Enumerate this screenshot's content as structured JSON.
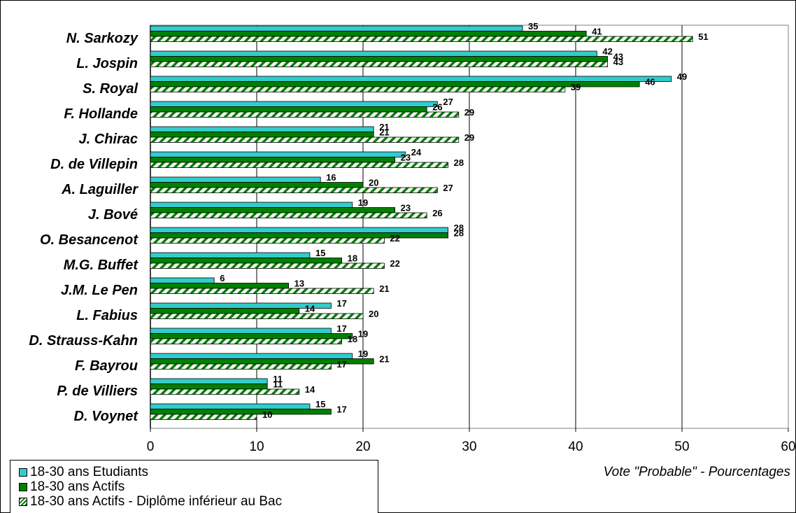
{
  "chart_data": {
    "type": "bar",
    "orientation": "horizontal",
    "categories": [
      "N. Sarkozy",
      "L. Jospin",
      "S. Royal",
      "F. Hollande",
      "J. Chirac",
      "D. de Villepin",
      "A. Laguiller",
      "J. Bové",
      "O. Besancenot",
      "M.G. Buffet",
      "J.M. Le Pen",
      "L. Fabius",
      "D. Strauss-Kahn",
      "F. Bayrou",
      "P. de Villiers",
      "D. Voynet"
    ],
    "series": [
      {
        "name": "18-30 ans Etudiants",
        "color": "#33CCCC",
        "pattern": "solid",
        "values": [
          35,
          42,
          49,
          27,
          21,
          24,
          16,
          19,
          28,
          15,
          6,
          17,
          17,
          19,
          11,
          15
        ]
      },
      {
        "name": "18-30 ans Actifs",
        "color": "#008000",
        "pattern": "solid",
        "values": [
          41,
          43,
          46,
          26,
          21,
          23,
          20,
          23,
          28,
          18,
          13,
          14,
          19,
          21,
          11,
          17
        ]
      },
      {
        "name": "18-30 ans Actifs - Diplôme inférieur au Bac",
        "color": "#008000",
        "pattern": "diagonal-hatch",
        "values": [
          51,
          43,
          39,
          29,
          29,
          28,
          27,
          26,
          22,
          22,
          21,
          20,
          18,
          17,
          14,
          10
        ]
      }
    ],
    "xlim": [
      0,
      60
    ],
    "xticks": [
      "0",
      "10",
      "20",
      "30",
      "40",
      "50",
      "60"
    ],
    "xlabel": "Vote \"Probable\" - Pourcentages",
    "grid": true,
    "legend_position": "bottom-left",
    "plot_background": "#FFFFFF",
    "gridline_color": "#808080"
  }
}
